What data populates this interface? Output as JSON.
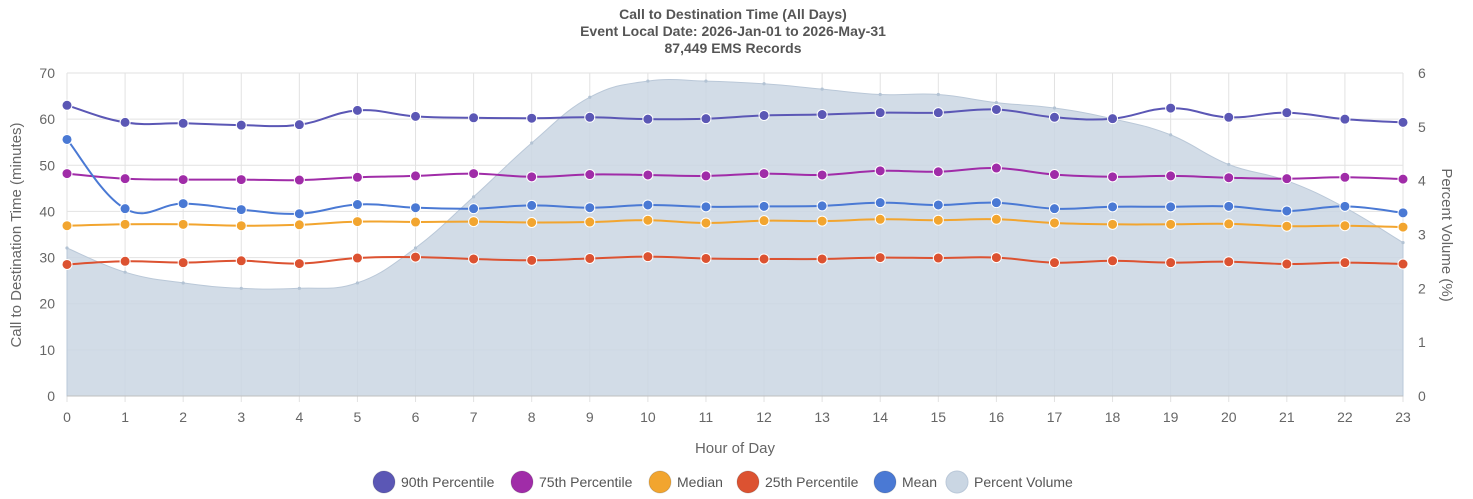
{
  "chart_data": {
    "type": "line",
    "title": [
      "Call to Destination Time (All Days)",
      "Event Local Date: 2026-Jan-01 to 2026-May-31",
      "87,449 EMS Records"
    ],
    "xlabel": "Hour of Day",
    "ylabel": "Call to Destination Time (minutes)",
    "y2label": "Percent Volume (%)",
    "x": [
      0,
      1,
      2,
      3,
      4,
      5,
      6,
      7,
      8,
      9,
      10,
      11,
      12,
      13,
      14,
      15,
      16,
      17,
      18,
      19,
      20,
      21,
      22,
      23
    ],
    "x_ticks": [
      "0",
      "1",
      "2",
      "3",
      "4",
      "5",
      "6",
      "7",
      "8",
      "9",
      "10",
      "11",
      "12",
      "13",
      "14",
      "15",
      "16",
      "17",
      "18",
      "19",
      "20",
      "21",
      "22",
      "23"
    ],
    "ylim": [
      0,
      70
    ],
    "y_ticks": [
      "0",
      "10",
      "20",
      "30",
      "40",
      "50",
      "60",
      "70"
    ],
    "y2lim": [
      0,
      6
    ],
    "y2_ticks": [
      "0",
      "1",
      "2",
      "3",
      "4",
      "5",
      "6"
    ],
    "grid": true,
    "legend_position": "bottom",
    "series": [
      {
        "name": "90th Percentile",
        "axis": "left",
        "type": "line",
        "color": "#5b57b5",
        "values": [
          63.0,
          59.3,
          59.1,
          58.7,
          58.8,
          61.9,
          60.6,
          60.3,
          60.2,
          60.4,
          60.0,
          60.1,
          60.8,
          61.0,
          61.4,
          61.4,
          62.1,
          60.4,
          60.1,
          62.4,
          60.4,
          61.4,
          60.0,
          59.3
        ]
      },
      {
        "name": "75th Percentile",
        "axis": "left",
        "type": "line",
        "color": "#a02ca8",
        "values": [
          48.2,
          47.1,
          46.9,
          46.9,
          46.8,
          47.4,
          47.7,
          48.2,
          47.5,
          48.0,
          47.9,
          47.7,
          48.2,
          47.9,
          48.8,
          48.6,
          49.4,
          48.0,
          47.5,
          47.7,
          47.3,
          47.1,
          47.4,
          47.0
        ]
      },
      {
        "name": "Median",
        "axis": "left",
        "type": "line",
        "color": "#f2a52f",
        "values": [
          36.9,
          37.2,
          37.2,
          36.9,
          37.1,
          37.8,
          37.7,
          37.8,
          37.6,
          37.7,
          38.1,
          37.5,
          38.0,
          37.9,
          38.3,
          38.1,
          38.3,
          37.5,
          37.2,
          37.2,
          37.3,
          36.8,
          36.9,
          36.6
        ]
      },
      {
        "name": "25th Percentile",
        "axis": "left",
        "type": "line",
        "color": "#dc5231",
        "values": [
          28.5,
          29.2,
          28.9,
          29.3,
          28.7,
          29.9,
          30.1,
          29.7,
          29.4,
          29.8,
          30.2,
          29.8,
          29.7,
          29.7,
          30.0,
          29.9,
          30.0,
          28.9,
          29.3,
          28.9,
          29.1,
          28.6,
          28.9,
          28.6
        ]
      },
      {
        "name": "Mean",
        "axis": "left",
        "type": "line",
        "color": "#4a79d4",
        "values": [
          55.6,
          40.6,
          41.7,
          40.4,
          39.5,
          41.5,
          40.8,
          40.6,
          41.3,
          40.8,
          41.4,
          41.0,
          41.1,
          41.2,
          41.9,
          41.4,
          41.9,
          40.6,
          41.0,
          41.0,
          41.1,
          40.1,
          41.1,
          39.7
        ]
      },
      {
        "name": "Percent Volume",
        "axis": "right",
        "type": "area",
        "color": "#cad6e3",
        "values": [
          2.75,
          2.3,
          2.1,
          2.0,
          2.0,
          2.1,
          2.75,
          3.7,
          4.7,
          5.55,
          5.85,
          5.85,
          5.8,
          5.7,
          5.6,
          5.6,
          5.45,
          5.35,
          5.15,
          4.85,
          4.3,
          4.0,
          3.5,
          2.85
        ]
      }
    ]
  }
}
